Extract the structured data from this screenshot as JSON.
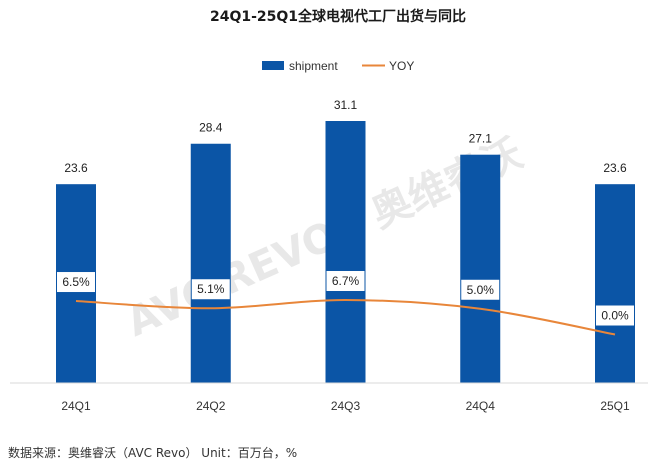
{
  "chart_data": {
    "type": "bar",
    "title": "24Q1-25Q1全球电视代工厂出货与同比",
    "categories": [
      "24Q1",
      "24Q2",
      "24Q3",
      "24Q4",
      "25Q1"
    ],
    "series": [
      {
        "name": "shipment",
        "type": "bar",
        "values": [
          23.6,
          28.4,
          31.1,
          27.1,
          23.6
        ],
        "color": "#0b55a6"
      },
      {
        "name": "YOY",
        "type": "line",
        "values": [
          6.5,
          5.1,
          6.7,
          5.0,
          0.0
        ],
        "labels": [
          "6.5%",
          "5.1%",
          "6.7%",
          "5.0%",
          "0.0%"
        ],
        "color": "#e8863a"
      }
    ],
    "legend": {
      "placement": "top-center"
    },
    "grid": false
  },
  "watermark": "AVC REVO | 奥维睿沃",
  "source": "数据来源：奥维睿沃（AVC Revo） Unit：百万台，%"
}
